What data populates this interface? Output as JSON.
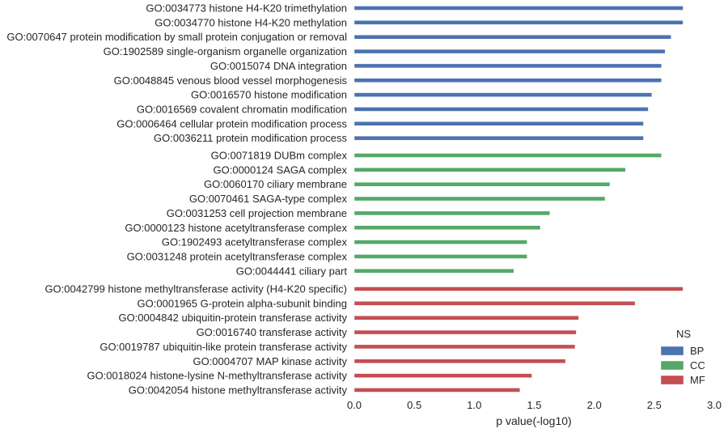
{
  "chart_data": {
    "type": "bar",
    "orientation": "horizontal",
    "xlabel": "p value(-log10)",
    "xlim": [
      0,
      3.0
    ],
    "xticks": [
      "0.0",
      "0.5",
      "1.0",
      "1.5",
      "2.0",
      "2.5",
      "3.0"
    ],
    "grid": false,
    "legend": {
      "title": "NS",
      "placement": "bottom-right",
      "entries": [
        {
          "name": "BP",
          "color": "#4c72b0"
        },
        {
          "name": "CC",
          "color": "#55a868"
        },
        {
          "name": "MF",
          "color": "#c44e52"
        }
      ]
    },
    "bars": [
      {
        "label": "GO:0034773 histone H4-K20 trimethylation",
        "value": 2.74,
        "ns": "BP"
      },
      {
        "label": "GO:0034770 histone H4-K20 methylation",
        "value": 2.74,
        "ns": "BP"
      },
      {
        "label": "GO:0070647 protein modification by small protein conjugation or removal",
        "value": 2.64,
        "ns": "BP"
      },
      {
        "label": "GO:1902589 single-organism organelle organization",
        "value": 2.59,
        "ns": "BP"
      },
      {
        "label": "GO:0015074 DNA integration",
        "value": 2.56,
        "ns": "BP"
      },
      {
        "label": "GO:0048845 venous blood vessel morphogenesis",
        "value": 2.56,
        "ns": "BP"
      },
      {
        "label": "GO:0016570 histone modification",
        "value": 2.48,
        "ns": "BP"
      },
      {
        "label": "GO:0016569 covalent chromatin modification",
        "value": 2.45,
        "ns": "BP"
      },
      {
        "label": "GO:0006464 cellular protein modification process",
        "value": 2.41,
        "ns": "BP"
      },
      {
        "label": "GO:0036211 protein modification process",
        "value": 2.41,
        "ns": "BP"
      },
      {
        "label": "GO:0071819 DUBm complex",
        "value": 2.56,
        "ns": "CC"
      },
      {
        "label": "GO:0000124 SAGA complex",
        "value": 2.26,
        "ns": "CC"
      },
      {
        "label": "GO:0060170 ciliary membrane",
        "value": 2.13,
        "ns": "CC"
      },
      {
        "label": "GO:0070461 SAGA-type complex",
        "value": 2.09,
        "ns": "CC"
      },
      {
        "label": "GO:0031253 cell projection membrane",
        "value": 1.63,
        "ns": "CC"
      },
      {
        "label": "GO:0000123 histone acetyltransferase complex",
        "value": 1.55,
        "ns": "CC"
      },
      {
        "label": "GO:1902493 acetyltransferase complex",
        "value": 1.44,
        "ns": "CC"
      },
      {
        "label": "GO:0031248 protein acetyltransferase complex",
        "value": 1.44,
        "ns": "CC"
      },
      {
        "label": "GO:0044441 ciliary part",
        "value": 1.33,
        "ns": "CC"
      },
      {
        "label": "GO:0042799 histone methyltransferase activity (H4-K20 specific)",
        "value": 2.74,
        "ns": "MF"
      },
      {
        "label": "GO:0001965 G-protein alpha-subunit binding",
        "value": 2.34,
        "ns": "MF"
      },
      {
        "label": "GO:0004842 ubiquitin-protein transferase activity",
        "value": 1.87,
        "ns": "MF"
      },
      {
        "label": "GO:0016740 transferase activity",
        "value": 1.85,
        "ns": "MF"
      },
      {
        "label": "GO:0019787 ubiquitin-like protein transferase activity",
        "value": 1.84,
        "ns": "MF"
      },
      {
        "label": "GO:0004707 MAP kinase activity",
        "value": 1.76,
        "ns": "MF"
      },
      {
        "label": "GO:0018024 histone-lysine N-methyltransferase activity",
        "value": 1.48,
        "ns": "MF"
      },
      {
        "label": "GO:0042054 histone methyltransferase activity",
        "value": 1.38,
        "ns": "MF"
      }
    ]
  }
}
